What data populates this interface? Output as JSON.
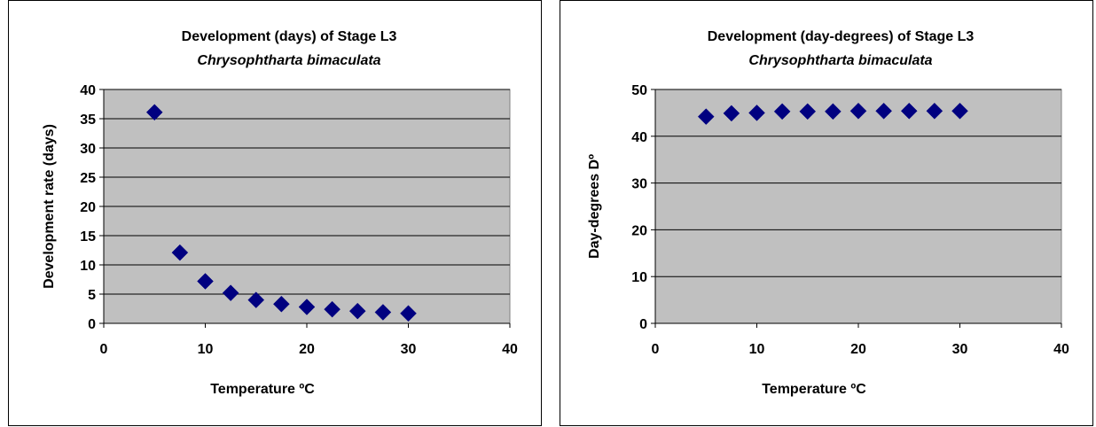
{
  "chart_data": [
    {
      "type": "scatter",
      "title": "Development (days) of Stage L3",
      "subtitle": "Chrysophtharta bimaculata",
      "xlabel": "Temperature ºC",
      "ylabel": "Development rate (days)",
      "xlim": [
        0,
        40
      ],
      "ylim": [
        0,
        40
      ],
      "xticks": [
        "0",
        "10",
        "20",
        "30",
        "40"
      ],
      "yticks": [
        "0",
        "5",
        "10",
        "15",
        "20",
        "25",
        "30",
        "35",
        "40"
      ],
      "grid": "horizontal",
      "plot_background": "#c0c0c0",
      "marker_color": "#000080",
      "series": [
        {
          "x": [
            5,
            7.5,
            10,
            12.5,
            15,
            17.5,
            20,
            22.5,
            25,
            27.5,
            30
          ],
          "y": [
            36.1,
            12.1,
            7.2,
            5.2,
            4.0,
            3.3,
            2.8,
            2.4,
            2.1,
            1.9,
            1.7
          ]
        }
      ]
    },
    {
      "type": "scatter",
      "title": "Development (day-degrees) of Stage L3",
      "subtitle": "Chrysophtharta bimaculata",
      "xlabel": "Temperature ºC",
      "ylabel": "Day-degrees Dº",
      "xlim": [
        0,
        40
      ],
      "ylim": [
        0,
        50
      ],
      "xticks": [
        "0",
        "10",
        "20",
        "30",
        "40"
      ],
      "yticks": [
        "0",
        "10",
        "20",
        "30",
        "40",
        "50"
      ],
      "grid": "horizontal",
      "plot_background": "#c0c0c0",
      "marker_color": "#000080",
      "series": [
        {
          "x": [
            5,
            7.5,
            10,
            12.5,
            15,
            17.5,
            20,
            22.5,
            25,
            27.5,
            30
          ],
          "y": [
            44.2,
            44.9,
            45.0,
            45.3,
            45.3,
            45.3,
            45.4,
            45.4,
            45.4,
            45.4,
            45.4
          ]
        }
      ]
    }
  ]
}
